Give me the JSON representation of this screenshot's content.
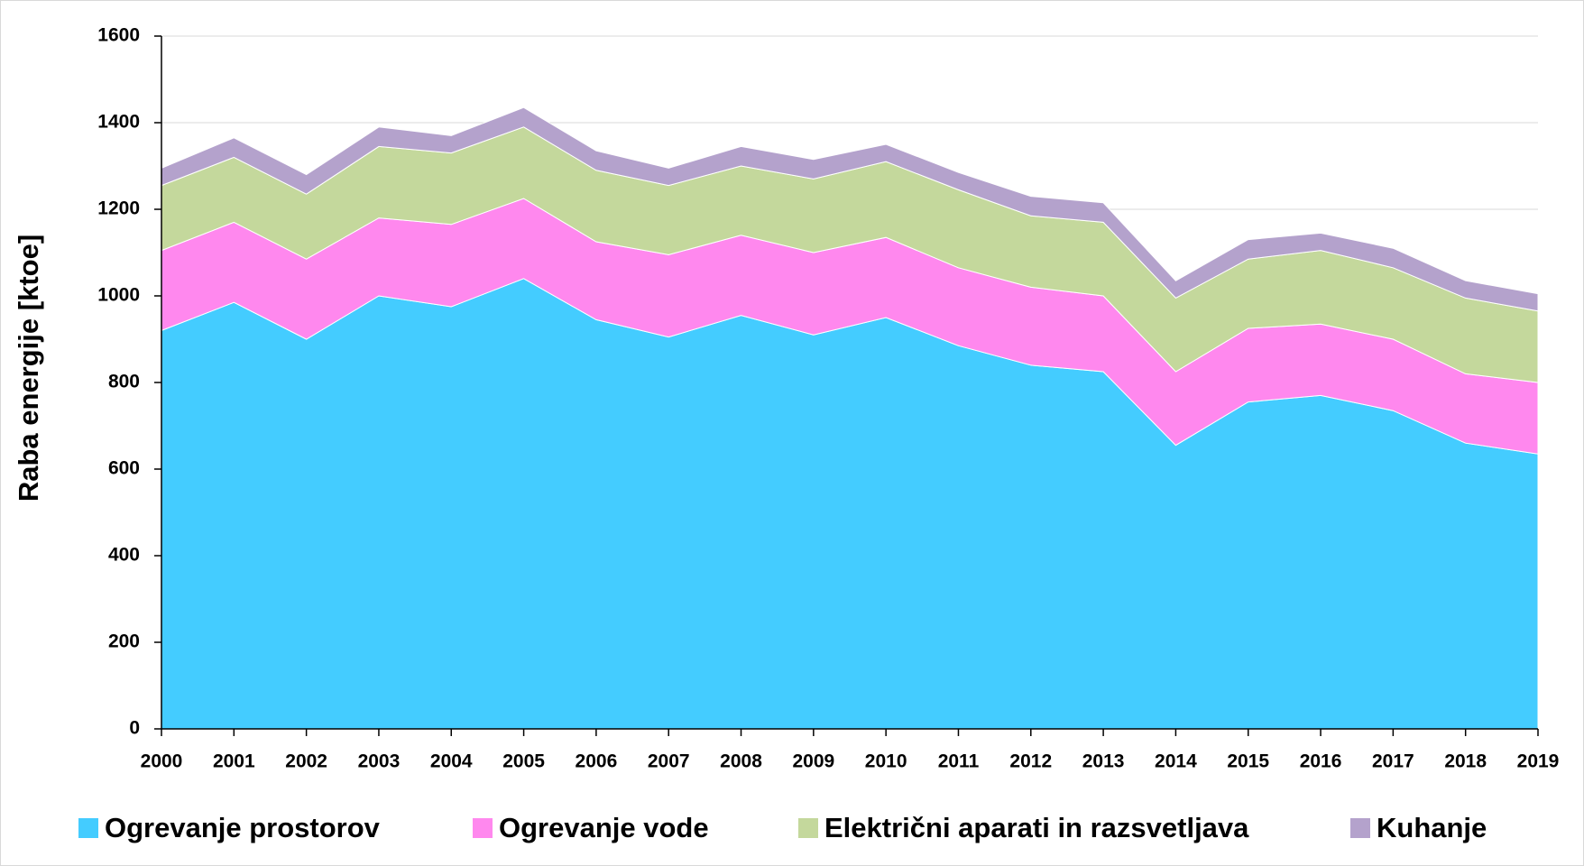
{
  "chart_data": {
    "type": "stacked-area",
    "y_label": "Raba energije [ktoe]",
    "categories": [
      "2000",
      "2001",
      "2002",
      "2003",
      "2004",
      "2005",
      "2006",
      "2007",
      "2008",
      "2009",
      "2010",
      "2011",
      "2012",
      "2013",
      "2014",
      "2015",
      "2016",
      "2017",
      "2018",
      "2019"
    ],
    "series": [
      {
        "name": "Ogrevanje prostorov",
        "color": "#44ccff",
        "values": [
          920,
          985,
          900,
          1000,
          975,
          1040,
          945,
          905,
          955,
          910,
          950,
          885,
          840,
          825,
          655,
          755,
          770,
          735,
          660,
          635
        ]
      },
      {
        "name": "Ogrevanje vode",
        "color": "#ff88ee",
        "values": [
          185,
          185,
          185,
          180,
          190,
          185,
          180,
          190,
          185,
          190,
          185,
          180,
          180,
          175,
          170,
          170,
          165,
          165,
          160,
          165
        ]
      },
      {
        "name": "Električni aparati in razsvetljava",
        "color": "#c4d89c",
        "values": [
          150,
          150,
          150,
          165,
          165,
          165,
          165,
          160,
          160,
          170,
          175,
          180,
          165,
          170,
          170,
          160,
          170,
          165,
          175,
          165
        ]
      },
      {
        "name": "Kuhanje",
        "color": "#b4a2cc",
        "values": [
          40,
          45,
          45,
          45,
          40,
          45,
          45,
          40,
          45,
          45,
          40,
          40,
          45,
          45,
          40,
          45,
          40,
          45,
          40,
          40
        ]
      }
    ],
    "ylim": [
      0,
      1600
    ],
    "yticks": [
      0,
      200,
      400,
      600,
      800,
      1000,
      1200,
      1400,
      1600
    ],
    "grid": true,
    "legend": "bottom"
  }
}
